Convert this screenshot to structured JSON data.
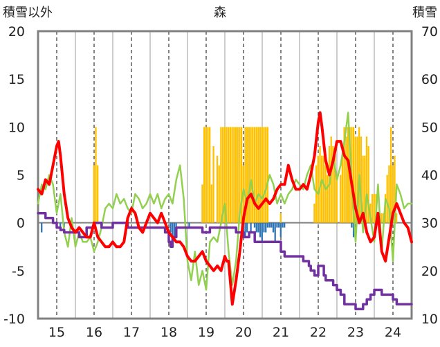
{
  "chart_data": {
    "type": "line",
    "title": "森",
    "left_axis_label": "積雪以外",
    "right_axis_label": "積雪",
    "left_ylim": [
      -10,
      20
    ],
    "left_ticks": [
      20,
      15,
      10,
      5,
      0,
      -5,
      -10
    ],
    "right_ylim": [
      10,
      70
    ],
    "right_ticks": [
      70,
      60,
      50,
      40,
      30,
      20,
      10
    ],
    "x_range": [
      14.5,
      24.5
    ],
    "x_ticks": [
      "15",
      "16",
      "17",
      "18",
      "19",
      "20",
      "21",
      "22",
      "23",
      "24"
    ],
    "grid": "vertical dashed at each year, solid between years",
    "colors": {
      "red": "#ff0000",
      "green": "#92d050",
      "purple": "#7030a0",
      "orange": "#ffc000",
      "blue": "#2e75b6",
      "zero_line": "#808080",
      "frame": "#808080"
    },
    "series": [
      {
        "color": "red",
        "axis": "left",
        "x": [
          14.5,
          14.6,
          14.7,
          14.8,
          14.9,
          15.0,
          15.05,
          15.1,
          15.2,
          15.3,
          15.4,
          15.5,
          15.6,
          15.7,
          15.8,
          15.9,
          16.0,
          16.1,
          16.2,
          16.3,
          16.4,
          16.5,
          16.6,
          16.7,
          16.8,
          16.9,
          17.0,
          17.1,
          17.2,
          17.3,
          17.4,
          17.5,
          17.6,
          17.7,
          17.8,
          17.9,
          18.0,
          18.1,
          18.2,
          18.3,
          18.4,
          18.5,
          18.6,
          18.7,
          18.8,
          18.9,
          19.0,
          19.1,
          19.2,
          19.3,
          19.4,
          19.5,
          19.55,
          19.6,
          19.7,
          19.8,
          19.9,
          20.0,
          20.1,
          20.2,
          20.3,
          20.4,
          20.5,
          20.6,
          20.7,
          20.8,
          20.9,
          21.0,
          21.1,
          21.2,
          21.3,
          21.4,
          21.5,
          21.6,
          21.7,
          21.8,
          21.9,
          22.0,
          22.05,
          22.1,
          22.2,
          22.3,
          22.4,
          22.5,
          22.6,
          22.7,
          22.8,
          22.9,
          23.0,
          23.1,
          23.2,
          23.3,
          23.4,
          23.5,
          23.6,
          23.7,
          23.8,
          23.9,
          24.0,
          24.1,
          24.2,
          24.3,
          24.4,
          24.5
        ],
        "y": [
          3.5,
          3.0,
          4.5,
          4.0,
          6.0,
          8.0,
          8.5,
          7.0,
          3.0,
          0.5,
          -0.5,
          -1.0,
          -0.5,
          -1.0,
          -1.5,
          -1.5,
          0.0,
          -1.5,
          -2.0,
          -2.5,
          -2.5,
          -2.0,
          -2.5,
          -2.5,
          -2.0,
          0.5,
          1.5,
          1.0,
          -0.5,
          -1.0,
          0.0,
          1.0,
          0.5,
          0.0,
          1.0,
          0.0,
          -1.0,
          -1.5,
          -2.0,
          -2.0,
          -2.5,
          -3.5,
          -4.0,
          -4.0,
          -3.5,
          -3.0,
          -4.0,
          -4.5,
          -5.0,
          -4.5,
          -5.0,
          -3.5,
          -4.0,
          -4.0,
          -8.5,
          -6.0,
          -3.0,
          0.5,
          2.5,
          3.0,
          2.0,
          1.5,
          2.0,
          2.5,
          2.0,
          2.5,
          3.5,
          4.0,
          4.0,
          6.0,
          4.5,
          3.5,
          3.5,
          4.0,
          3.5,
          5.0,
          7.0,
          10.5,
          11.5,
          10.0,
          6.5,
          5.0,
          6.5,
          8.5,
          8.5,
          7.0,
          6.5,
          4.0,
          1.5,
          0.0,
          1.0,
          -1.0,
          -2.0,
          -1.5,
          1.0,
          -3.0,
          -4.0,
          -1.5,
          1.0,
          2.0,
          1.0,
          0.0,
          -0.5,
          -2.0
        ]
      },
      {
        "color": "green",
        "axis": "left",
        "x": [
          14.5,
          14.6,
          14.7,
          14.8,
          14.9,
          15.0,
          15.1,
          15.2,
          15.3,
          15.4,
          15.5,
          15.6,
          15.7,
          15.8,
          15.9,
          16.0,
          16.1,
          16.2,
          16.3,
          16.4,
          16.5,
          16.6,
          16.7,
          16.8,
          16.9,
          17.0,
          17.1,
          17.2,
          17.3,
          17.4,
          17.5,
          17.6,
          17.7,
          17.8,
          17.9,
          18.0,
          18.1,
          18.2,
          18.3,
          18.4,
          18.5,
          18.6,
          18.7,
          18.8,
          18.9,
          19.0,
          19.1,
          19.2,
          19.3,
          19.4,
          19.5,
          19.6,
          19.7,
          19.8,
          19.9,
          20.0,
          20.1,
          20.2,
          20.3,
          20.4,
          20.5,
          20.6,
          20.7,
          20.8,
          20.9,
          21.0,
          21.1,
          21.2,
          21.3,
          21.4,
          21.5,
          21.6,
          21.7,
          21.8,
          21.9,
          22.0,
          22.1,
          22.2,
          22.3,
          22.4,
          22.5,
          22.6,
          22.7,
          22.8,
          22.9,
          23.0,
          23.1,
          23.2,
          23.3,
          23.4,
          23.5,
          23.6,
          23.7,
          23.8,
          23.9,
          24.0,
          24.1,
          24.2,
          24.3,
          24.4,
          24.5
        ],
        "y": [
          2.0,
          4.0,
          3.5,
          5.0,
          4.0,
          1.0,
          3.0,
          -1.0,
          -2.5,
          0.5,
          -2.5,
          -1.0,
          -2.0,
          -2.0,
          -1.5,
          -3.0,
          -2.0,
          -0.5,
          1.5,
          2.0,
          1.5,
          3.0,
          2.0,
          2.5,
          1.5,
          1.0,
          3.0,
          2.5,
          1.5,
          2.0,
          3.0,
          2.0,
          3.0,
          1.5,
          2.5,
          3.0,
          2.0,
          4.5,
          6.0,
          2.5,
          -4.0,
          -6.0,
          -3.0,
          -6.5,
          -5.0,
          -7.0,
          -2.0,
          -1.5,
          -2.0,
          0.0,
          2.0,
          -3.0,
          -6.5,
          -4.0,
          1.0,
          3.5,
          2.0,
          4.5,
          2.0,
          3.0,
          2.5,
          3.5,
          5.0,
          4.0,
          2.0,
          3.0,
          2.0,
          3.0,
          3.5,
          4.5,
          4.0,
          3.5,
          5.0,
          6.0,
          3.5,
          3.0,
          4.5,
          3.5,
          4.0,
          7.0,
          4.5,
          6.0,
          8.5,
          11.5,
          4.0,
          -2.0,
          5.0,
          -1.0,
          3.0,
          0.5,
          -2.0,
          4.0,
          -3.0,
          2.5,
          1.5,
          -4.0,
          4.0,
          3.0,
          1.5,
          2.0,
          2.0
        ]
      },
      {
        "color": "purple",
        "axis": "right",
        "x": [
          14.5,
          14.7,
          14.7,
          14.9,
          14.9,
          15.0,
          15.0,
          15.1,
          15.1,
          15.2,
          15.2,
          15.6,
          15.6,
          15.8,
          15.8,
          16.0,
          16.0,
          16.2,
          16.2,
          16.5,
          16.5,
          16.9,
          16.9,
          17.9,
          17.9,
          18.0,
          18.0,
          18.05,
          18.05,
          18.1,
          18.1,
          18.2,
          18.2,
          18.9,
          18.9,
          19.1,
          19.1,
          19.8,
          19.8,
          20.0,
          20.0,
          20.15,
          20.15,
          20.3,
          20.3,
          20.9,
          21.0,
          21.0,
          21.1,
          21.1,
          21.6,
          21.6,
          21.75,
          21.75,
          21.8,
          21.8,
          21.9,
          21.9,
          22.0,
          22.0,
          22.15,
          22.15,
          22.2,
          22.2,
          22.4,
          22.4,
          22.5,
          22.5,
          22.6,
          22.6,
          22.7,
          22.7,
          23.0,
          23.0,
          23.2,
          23.2,
          23.3,
          23.3,
          23.4,
          23.4,
          23.5,
          23.5,
          23.7,
          23.7,
          24.0,
          24.0,
          24.1,
          24.1,
          24.5
        ],
        "y": [
          32,
          32,
          31,
          31,
          30,
          30,
          29,
          29,
          28.5,
          28.5,
          28,
          28,
          27,
          27,
          29,
          29,
          30,
          30,
          29,
          29,
          30,
          30,
          29,
          29,
          28,
          28,
          26,
          26,
          25,
          25,
          27,
          27,
          29,
          29,
          28,
          28,
          29,
          29,
          28,
          28,
          27,
          27,
          28,
          28,
          26,
          26,
          26,
          24,
          24,
          23,
          23,
          22,
          22,
          21,
          21,
          20,
          20,
          19,
          19,
          21,
          21,
          19,
          19,
          18,
          18,
          17,
          17,
          16,
          16,
          15,
          15,
          13,
          13,
          12,
          12,
          13,
          13,
          14,
          14,
          15,
          15,
          16,
          16,
          15,
          15,
          14,
          14,
          13,
          13
        ]
      },
      {
        "color": "orange",
        "axis": "left",
        "bars": true,
        "x": [
          16.0,
          16.05,
          16.1,
          18.9,
          18.95,
          19.0,
          19.05,
          19.1,
          19.15,
          19.2,
          19.3,
          19.35,
          19.4,
          19.45,
          19.5,
          19.55,
          19.6,
          19.65,
          19.7,
          19.75,
          19.8,
          19.85,
          19.9,
          19.95,
          20.0,
          20.05,
          20.1,
          20.15,
          20.2,
          20.25,
          20.3,
          20.35,
          20.4,
          20.45,
          20.5,
          20.55,
          20.6,
          20.65,
          21.0,
          21.9,
          21.95,
          22.0,
          22.05,
          22.1,
          22.15,
          22.2,
          22.25,
          22.3,
          22.35,
          22.4,
          22.45,
          22.5,
          22.6,
          22.65,
          22.7,
          22.75,
          22.8,
          22.85,
          22.9,
          22.95,
          23.0,
          23.05,
          23.1,
          23.15,
          23.2,
          23.25,
          23.3,
          23.35,
          23.4,
          23.45,
          23.5,
          23.55,
          23.6,
          23.65,
          23.7,
          23.75,
          23.8,
          23.85,
          23.9,
          23.95,
          24.0,
          24.05,
          24.1
        ],
        "y": [
          6,
          10,
          6,
          4,
          10,
          10,
          10,
          10,
          4,
          8,
          7,
          6,
          10,
          10,
          10,
          10,
          10,
          10,
          10,
          10,
          10,
          10,
          10,
          10,
          6,
          10,
          10,
          10,
          10,
          10,
          10,
          10,
          10,
          10,
          10,
          10,
          10,
          10,
          1,
          2,
          6,
          7,
          8,
          7,
          7,
          6,
          5,
          8,
          9,
          8,
          7,
          5,
          5,
          7,
          10,
          9,
          10,
          10,
          10,
          10,
          9,
          9,
          10,
          9,
          7,
          7,
          9,
          8,
          2,
          3,
          3,
          3,
          1,
          1,
          1,
          1,
          3,
          5,
          6,
          10,
          6,
          7,
          1
        ]
      },
      {
        "color": "blue",
        "axis": "left",
        "bars": true,
        "x": [
          14.6,
          15.1,
          15.2,
          18.05,
          18.1,
          18.15,
          18.2,
          18.55,
          20.0,
          20.05,
          20.1,
          20.2,
          20.3,
          20.35,
          20.4,
          20.45,
          20.5,
          20.55,
          20.6,
          20.65,
          20.7,
          20.75,
          20.8,
          20.85,
          20.9,
          20.95,
          21.0,
          21.05,
          21.1,
          22.9,
          22.95
        ],
        "y": [
          -1.0,
          -0.5,
          -0.5,
          -1.0,
          -2.5,
          -1.5,
          -0.5,
          -0.5,
          -1.0,
          -1.5,
          -1.0,
          -1.0,
          -0.5,
          -1.0,
          -1.0,
          -1.5,
          -2.0,
          -1.0,
          -1.0,
          -0.5,
          -0.5,
          -0.5,
          -1.0,
          -2.0,
          -0.5,
          -0.5,
          -1.5,
          -0.5,
          -0.5,
          -0.5,
          -1.5
        ]
      }
    ]
  }
}
